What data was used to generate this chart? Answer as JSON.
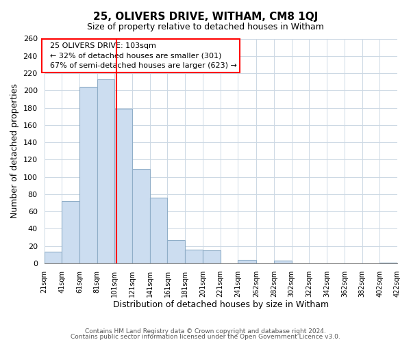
{
  "title": "25, OLIVERS DRIVE, WITHAM, CM8 1QJ",
  "subtitle": "Size of property relative to detached houses in Witham",
  "xlabel": "Distribution of detached houses by size in Witham",
  "ylabel": "Number of detached properties",
  "bar_color": "#ccddf0",
  "bar_edge_color": "#90aec8",
  "background_color": "#ffffff",
  "grid_color": "#ccd8e4",
  "bins": [
    21,
    41,
    61,
    81,
    101,
    121,
    141,
    161,
    181,
    201,
    221,
    241,
    262,
    282,
    302,
    322,
    342,
    362,
    382,
    402,
    422
  ],
  "counts": [
    13,
    72,
    204,
    213,
    179,
    109,
    76,
    27,
    16,
    15,
    0,
    4,
    0,
    3,
    0,
    0,
    0,
    0,
    0,
    1
  ],
  "red_line_x": 103,
  "annotation_title": "25 OLIVERS DRIVE: 103sqm",
  "annotation_line1": "← 32% of detached houses are smaller (301)",
  "annotation_line2": "67% of semi-detached houses are larger (623) →",
  "ylim": [
    0,
    260
  ],
  "yticks": [
    0,
    20,
    40,
    60,
    80,
    100,
    120,
    140,
    160,
    180,
    200,
    220,
    240,
    260
  ],
  "footer_line1": "Contains HM Land Registry data © Crown copyright and database right 2024.",
  "footer_line2": "Contains public sector information licensed under the Open Government Licence v3.0."
}
